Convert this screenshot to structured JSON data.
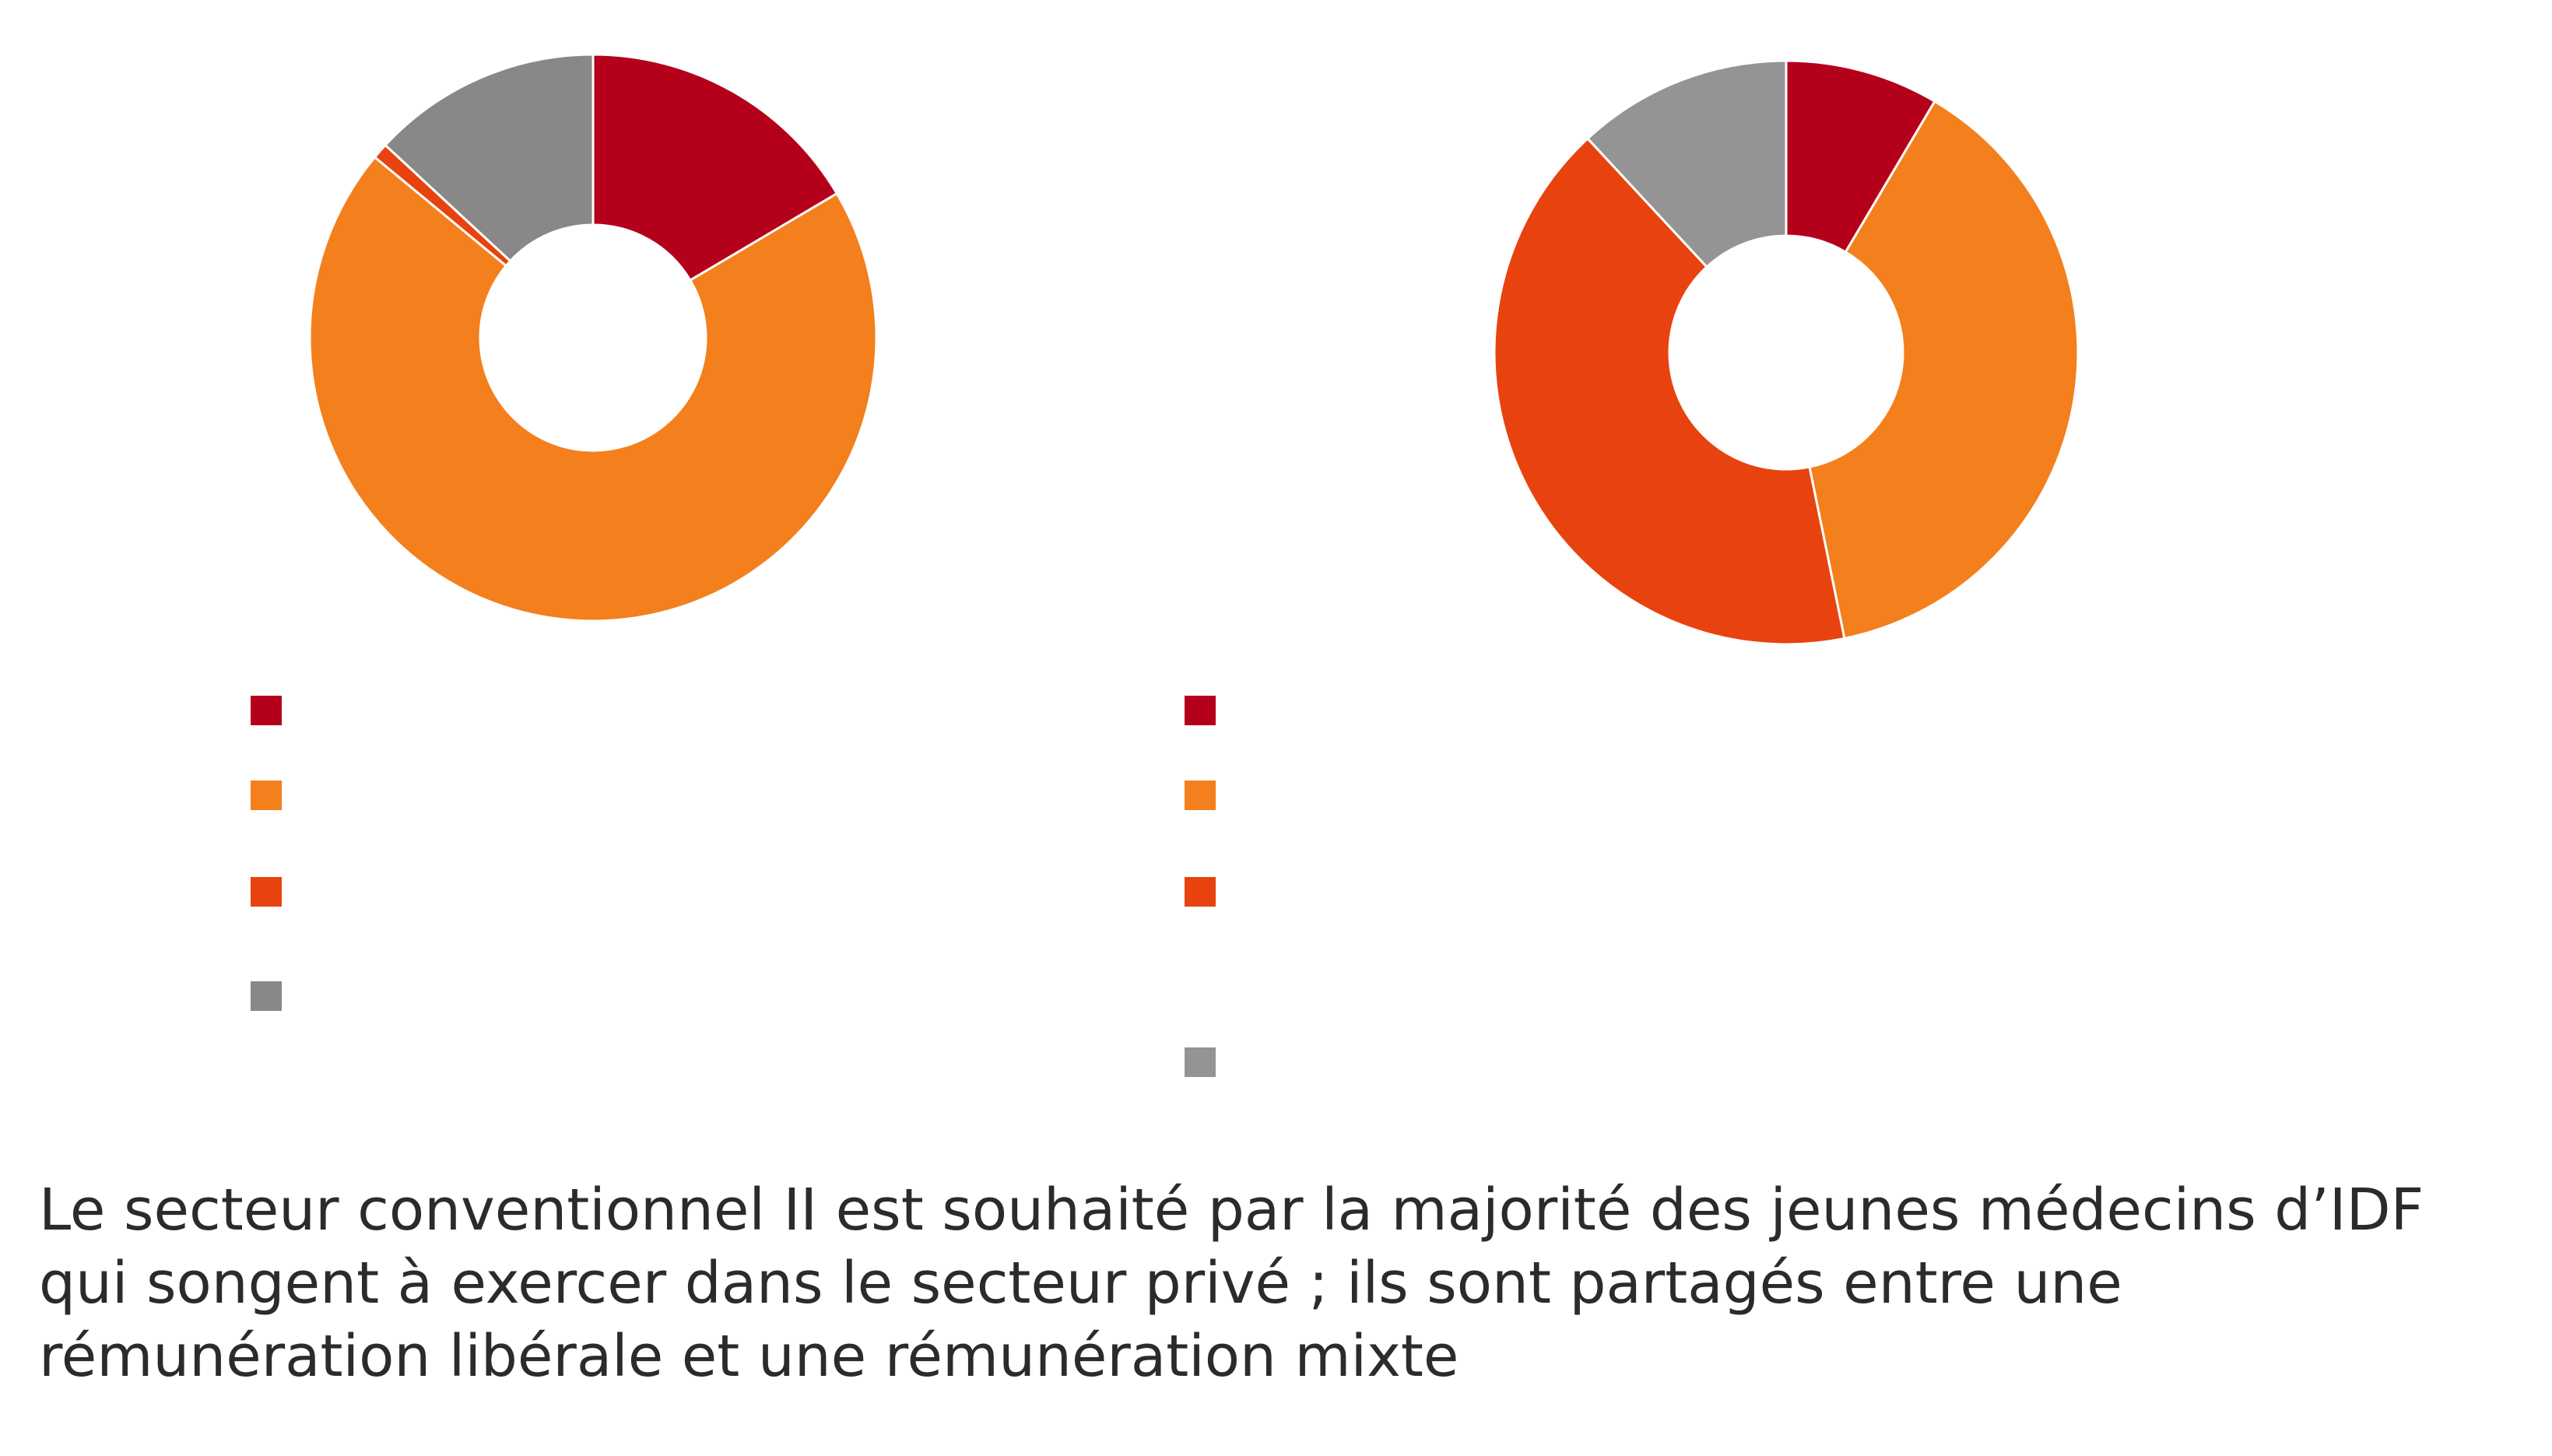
{
  "chart_data": [
    {
      "type": "pie",
      "donut": true,
      "slices": [
        {
          "value": 16.5,
          "color": "#b5001b"
        },
        {
          "value": 69.5,
          "color": "#f47f1d"
        },
        {
          "value": 0.9,
          "color": "#e8430e"
        },
        {
          "value": 13.1,
          "color": "#888888"
        }
      ],
      "legend_placement": "bottom-left"
    },
    {
      "type": "pie",
      "donut": true,
      "slices": [
        {
          "value": 8.5,
          "color": "#b5001b"
        },
        {
          "value": 38.3,
          "color": "#f47f1d"
        },
        {
          "value": 41.3,
          "color": "#e8430e"
        },
        {
          "value": 11.9,
          "color": "#949494"
        }
      ],
      "legend_placement": "bottom-center"
    }
  ],
  "caption": "Le secteur conventionnel II est souhaité par la majorité des jeunes médecins d’IDF\nqui songent à exercer dans le secteur privé ; ils sont partagés entre une\nrémunération libérale et une rémunération mixte"
}
